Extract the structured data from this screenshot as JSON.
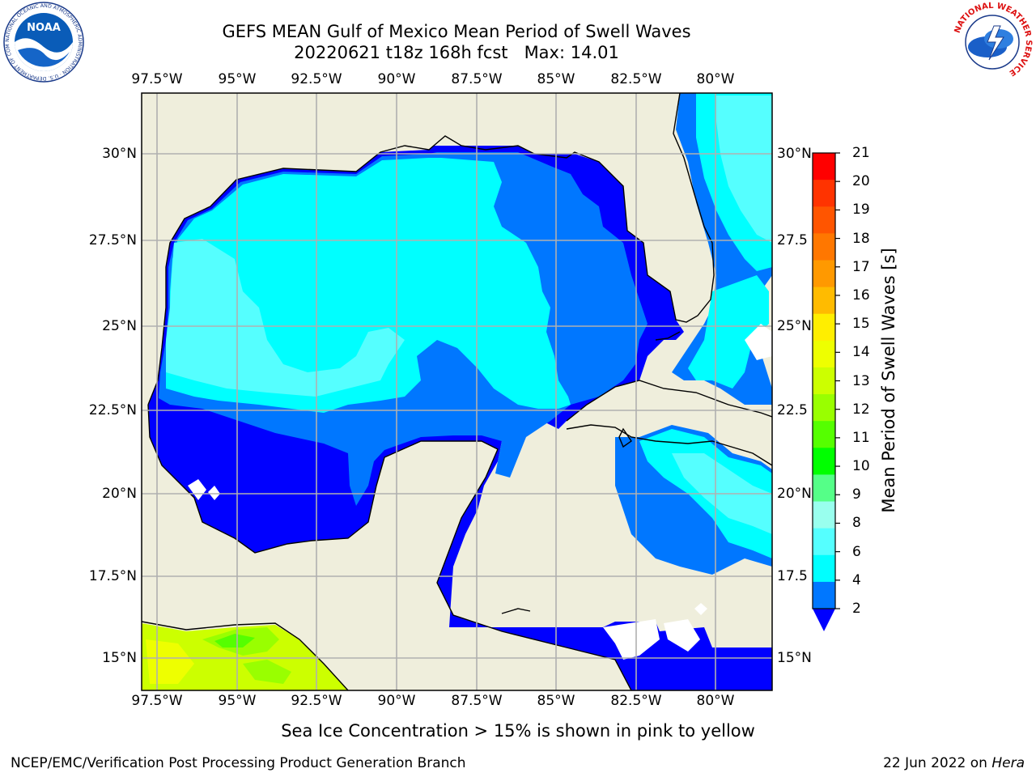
{
  "header": {
    "title_line1": "GEFS MEAN Gulf of Mexico Mean Period of Swell Waves",
    "title_line2": "20220621 t18z 168h fcst   Max: 14.01"
  },
  "logos": {
    "noara_text": "NOAA",
    "noaa_ring": "NATIONAL OCEANIC AND ATMOSPHERIC ADMINISTRATION · U.S. DEPARTMENT OF COMMERCE",
    "nws_ring": "NATIONAL WEATHER SERVICE"
  },
  "map": {
    "lon_ticks": [
      "97.5°W",
      "95°W",
      "92.5°W",
      "90°W",
      "87.5°W",
      "85°W",
      "82.5°W",
      "80°W"
    ],
    "lat_ticks": [
      "30°N",
      "27.5°N",
      "25°N",
      "22.5°N",
      "20°N",
      "17.5°N",
      "15°N"
    ],
    "lat_ticks_right": [
      "30°N",
      "27.5",
      "25°N",
      "22.5",
      "20°N",
      "17.5",
      "15°N"
    ]
  },
  "colorbar": {
    "label": "Mean Period of Swell Waves [s]",
    "ticks": [
      "21",
      "20",
      "19",
      "18",
      "17",
      "16",
      "15",
      "14",
      "13",
      "12",
      "11",
      "10",
      "9",
      "8",
      "6",
      "4",
      "2"
    ],
    "colors": [
      "#ff0000",
      "#ff3300",
      "#ff5500",
      "#ff7700",
      "#ff9900",
      "#ffbb00",
      "#ffee00",
      "#eeff00",
      "#ccff00",
      "#99ff00",
      "#55ff00",
      "#00ff00",
      "#55ff88",
      "#99ffee",
      "#55ffff",
      "#00ffff",
      "#0077ff"
    ],
    "extend_color": "#0000ff"
  },
  "caption": "Sea Ice Concentration > 15% is shown in pink to yellow",
  "footer": {
    "left": "NCEP/EMC/Verification Post Processing Product Generation Branch",
    "right_prefix": "22 Jun 2022 on ",
    "right_host": "Hera"
  }
}
